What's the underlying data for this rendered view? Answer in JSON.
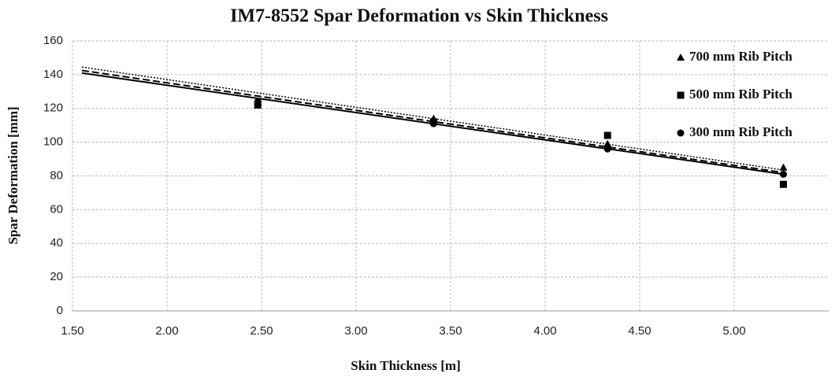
{
  "chart_data": {
    "type": "scatter",
    "title": "IM7-8552 Spar Deformation vs Skin Thickness",
    "x_label": "Skin Thickness [m]",
    "y_label": "Spar Deformation [mm]",
    "x": [
      2.48,
      3.41,
      4.33,
      5.26
    ],
    "series": [
      {
        "name": "700 mm Rib Pitch",
        "color": "#000000",
        "marker": "triangle",
        "values": [
          124,
          114,
          99,
          85
        ],
        "trend_x": [
          1.55,
          5.26
        ],
        "trend_values": [
          144.5,
          83.5
        ],
        "trend_style": "dotted"
      },
      {
        "name": "500 mm Rib Pitch",
        "color": "#000000",
        "marker": "square",
        "values": [
          122,
          112,
          104,
          75
        ],
        "trend_x": [
          1.55,
          5.26
        ],
        "trend_values": [
          142.5,
          82
        ],
        "trend_style": "dashed"
      },
      {
        "name": "300 mm Rib Pitch",
        "color": "#000000",
        "marker": "circle",
        "values": [
          124,
          111,
          96,
          81
        ],
        "trend_x": [
          1.55,
          5.26
        ],
        "trend_values": [
          141,
          81
        ],
        "trend_style": "solid"
      }
    ],
    "xlim": [
      1.5,
      5.5
    ],
    "xticks": [
      {
        "value": 1.5,
        "label": "1.50"
      },
      {
        "value": 2,
        "label": "2.00"
      },
      {
        "value": 2.5,
        "label": "2.50"
      },
      {
        "value": 3,
        "label": "3.00"
      },
      {
        "value": 3.5,
        "label": "3.50"
      },
      {
        "value": 4,
        "label": "4.00"
      },
      {
        "value": 4.5,
        "label": "4.50"
      },
      {
        "value": 5,
        "label": "5.00"
      }
    ],
    "ylim": [
      0,
      160
    ],
    "yticks": [
      0,
      20,
      40,
      60,
      80,
      100,
      120,
      140,
      160
    ],
    "grid": true,
    "legend": "top-right"
  }
}
